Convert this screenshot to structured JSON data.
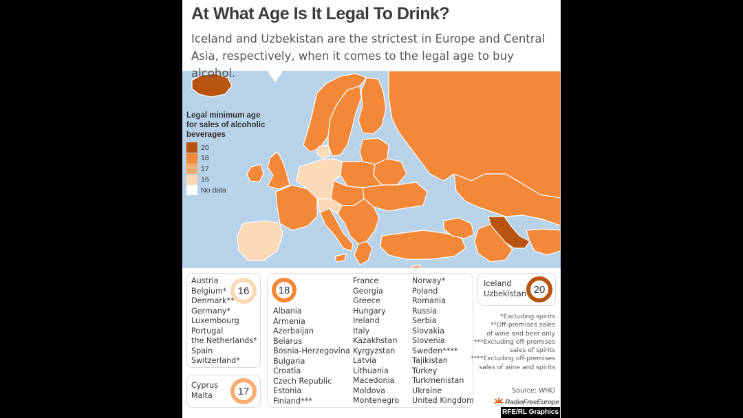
{
  "title": "At What Age Is It Legal To Drink?",
  "subtitle": "Iceland and Uzbekistan are the strictest in Europe and Central Asia, respectively, when it comes to the legal age to buy alcohol.",
  "colors": {
    "age_20": "#b85410",
    "age_18": "#f28838",
    "age_17": "#f7ad72",
    "age_16": "#fbd8b6",
    "no_data": "#ffffff",
    "sea": "#b8d2ea"
  },
  "legend": {
    "title": "Legal minimum age\nfor sales of alcoholic\nbeverages",
    "items": [
      {
        "label": "20",
        "color": "#b85410"
      },
      {
        "label": "18",
        "color": "#f28838"
      },
      {
        "label": "17",
        "color": "#f7ad72"
      },
      {
        "label": "16",
        "color": "#fbd8b6"
      },
      {
        "label": "No data",
        "color": "#ffffff"
      }
    ]
  },
  "groups": {
    "age16": {
      "badge": "16",
      "countries": [
        "Austria",
        "Belgium*",
        "Denmark**",
        "Germany*",
        "Luxembourg",
        "Portugal",
        "the Netherlands*",
        "Spain",
        "Switzerland*"
      ]
    },
    "age17": {
      "badge": "17",
      "countries": [
        "Cyprus",
        "Malta"
      ]
    },
    "age18": {
      "badge": "18",
      "col1": [
        "Albania",
        "Armenia",
        "Azerbaijan",
        "Belarus",
        "Bosnia-Herzegovina",
        "Bulgaria",
        "Croatia",
        "Czech Republic",
        "Estonia",
        "Finland***"
      ],
      "col2": [
        "France",
        "Georgia",
        "Greece",
        "Hungary",
        "Ireland",
        "Italy",
        "Kazakhstan",
        "Kyrgyzstan",
        "Latvia",
        "Lithuania",
        "Macedonia",
        "Moldova",
        "Montenegro"
      ],
      "col3": [
        "Norway*",
        "Poland",
        "Romania",
        "Russia",
        "Serbia",
        "Slovakia",
        "Slovenia",
        "Sweden****",
        "Tajikistan",
        "Turkey",
        "Turkmenistan",
        "Ukraine",
        "United Kingdom"
      ]
    },
    "age20": {
      "badge": "20",
      "countries": [
        "Iceland",
        "Uzbekistan"
      ]
    }
  },
  "notes": [
    "*Excluding spirits",
    "**Off-premises sales",
    "of wine and beer only",
    "***Excluding off-premises",
    "sales of spirits",
    "****Excluding off-premises",
    "sales of wine and spirits"
  ],
  "source": "Source: WHO",
  "logo_text": "RadioFreeEurope",
  "credit": "RFE/RL Graphics"
}
